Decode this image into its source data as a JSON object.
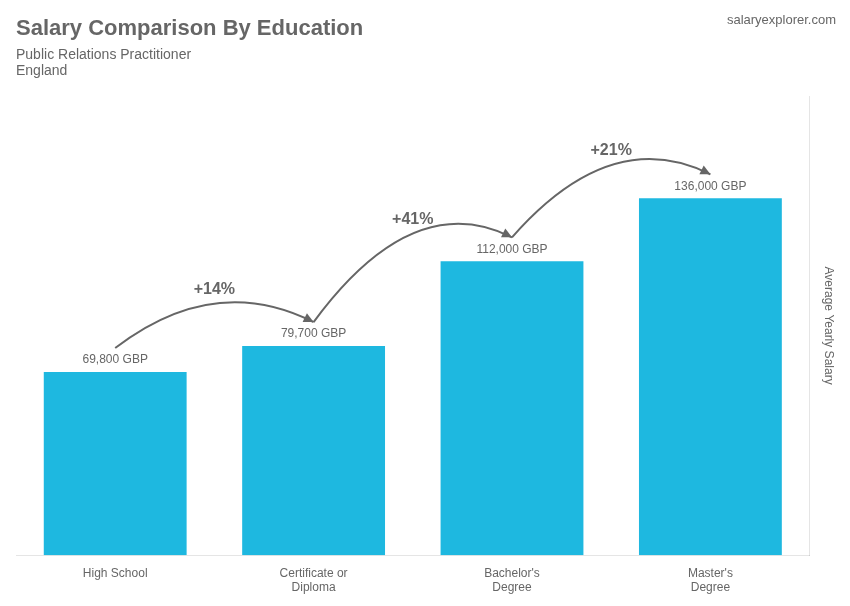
{
  "chart_data": {
    "type": "bar",
    "title": "Salary Comparison By Education",
    "subtitle": [
      "Public Relations Practitioner",
      "England"
    ],
    "source": "salaryexplorer.com",
    "ylabel": "Average Yearly Salary",
    "categories": [
      "High School",
      "Certificate or\nDiploma",
      "Bachelor's\nDegree",
      "Master's\nDegree"
    ],
    "values": [
      69800,
      79700,
      112000,
      136000
    ],
    "value_labels": [
      "69,800 GBP",
      "79,700 GBP",
      "112,000 GBP",
      "136,000 GBP"
    ],
    "data_labels": true,
    "annotations": [
      "+14%",
      "+41%",
      "+21%"
    ],
    "color": "#1eb8e0",
    "ylim": [
      0,
      175000
    ],
    "grid": false,
    "tick_labels": "x"
  }
}
